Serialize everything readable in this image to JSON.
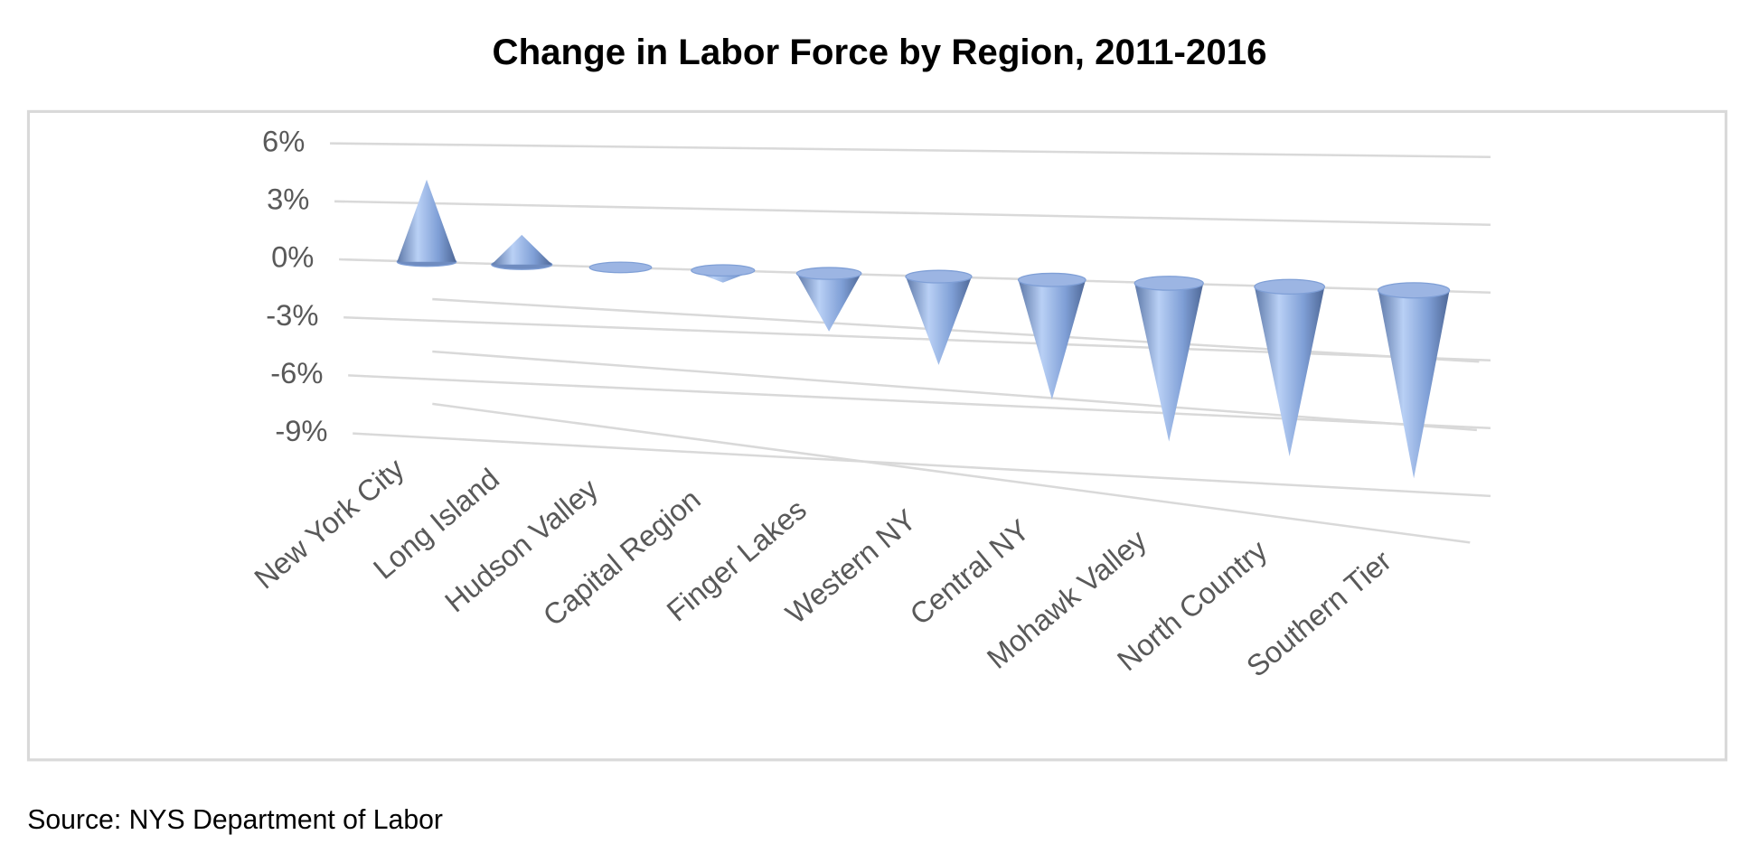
{
  "chart_data": {
    "type": "cone",
    "title": "Change in Labor Force by Region, 2011-2016",
    "categories": [
      "New York City",
      "Long Island",
      "Hudson Valley",
      "Capital Region",
      "Finger Lakes",
      "Western NY",
      "Central NY",
      "Mohawk Valley",
      "North Country",
      "Southern Tier"
    ],
    "values": [
      4.2,
      1.5,
      -0.1,
      -0.6,
      -2.8,
      -4.2,
      -5.6,
      -7.3,
      -7.7,
      -8.4
    ],
    "color": "#7f9fd6",
    "ylim": [
      -9,
      6
    ],
    "yticks": [
      {
        "value": 6,
        "label": "6%"
      },
      {
        "value": 3,
        "label": "3%"
      },
      {
        "value": 0,
        "label": "0%"
      },
      {
        "value": -3,
        "label": "-3%"
      },
      {
        "value": -6,
        "label": "-6%"
      },
      {
        "value": -9,
        "label": "-9%"
      }
    ],
    "grid": true,
    "source": "Source:  NYS Department of Labor"
  }
}
